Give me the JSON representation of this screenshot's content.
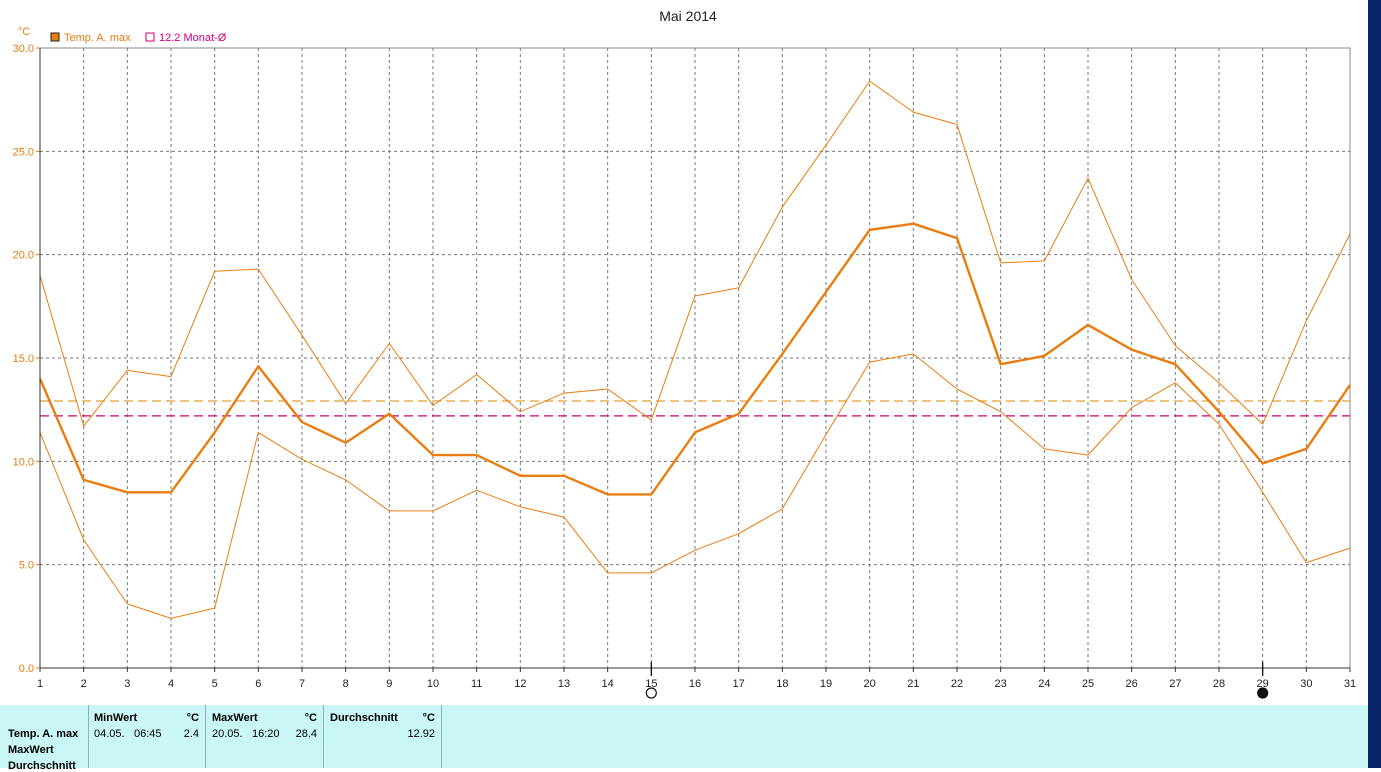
{
  "chart_data": {
    "type": "line",
    "title": "Mai 2014",
    "y_unit": "°C",
    "ylim": [
      0,
      30
    ],
    "yticks": [
      "0.0",
      "5.0",
      "10.0",
      "15.0",
      "20.0",
      "25.0",
      "30.0"
    ],
    "x": [
      1,
      2,
      3,
      4,
      5,
      6,
      7,
      8,
      9,
      10,
      11,
      12,
      13,
      14,
      15,
      16,
      17,
      18,
      19,
      20,
      21,
      22,
      23,
      24,
      25,
      26,
      27,
      28,
      29,
      30,
      31
    ],
    "grid": true,
    "legend_position": "top-left",
    "legend": [
      {
        "label": "Temp. A. max",
        "color": "#e87d10",
        "marker": "filled-square"
      },
      {
        "label": "12.2 Monat-Ø",
        "color": "#cc0077",
        "marker": "open-square"
      }
    ],
    "series": [
      {
        "name": "Temp. A. max",
        "role": "main",
        "color": "#e87d10",
        "values": [
          14.0,
          9.1,
          8.5,
          8.5,
          11.4,
          14.6,
          11.9,
          10.9,
          12.3,
          10.3,
          10.3,
          9.3,
          9.3,
          8.4,
          8.4,
          11.4,
          12.3,
          15.2,
          18.2,
          21.2,
          21.5,
          20.8,
          14.7,
          15.1,
          16.6,
          15.4,
          14.7,
          12.4,
          9.9,
          10.6,
          13.7
        ]
      },
      {
        "role": "upper",
        "color": "#e87d10",
        "values": [
          19.0,
          11.7,
          14.4,
          14.1,
          19.2,
          19.3,
          16.1,
          12.8,
          15.7,
          12.7,
          14.2,
          12.4,
          13.3,
          13.5,
          12.0,
          18.0,
          18.4,
          22.3,
          25.3,
          28.4,
          26.9,
          26.3,
          19.6,
          19.7,
          23.7,
          18.8,
          15.6,
          13.8,
          11.8,
          16.8,
          21.0
        ]
      },
      {
        "role": "lower",
        "color": "#e87d10",
        "values": [
          11.4,
          6.2,
          3.1,
          2.4,
          2.9,
          11.4,
          10.1,
          9.1,
          7.6,
          7.6,
          8.6,
          7.8,
          7.3,
          4.6,
          4.6,
          5.7,
          6.5,
          7.7,
          11.3,
          14.8,
          15.2,
          13.5,
          12.4,
          10.6,
          10.3,
          12.6,
          13.8,
          11.8,
          8.5,
          5.1,
          5.8
        ]
      }
    ],
    "reference_lines": [
      {
        "y": 12.92,
        "color": "#e0a030"
      },
      {
        "y": 12.2,
        "color": "#cc0077"
      }
    ],
    "moon_markers": [
      {
        "x": 15,
        "phase": "full"
      },
      {
        "x": 29,
        "phase": "new"
      }
    ]
  },
  "stats": {
    "row_labels": [
      "Temp. A. max",
      "MaxWert",
      "Durchschnitt"
    ],
    "min": {
      "header": "MinWert",
      "unit": "°C",
      "date": "04.05.",
      "time": "06:45",
      "value": "2.4"
    },
    "max": {
      "header": "MaxWert",
      "unit": "°C",
      "date": "20.05.",
      "time": "16:20",
      "value": "28.4"
    },
    "avg": {
      "header": "Durchschnitt",
      "unit": "°C",
      "value": "12.92"
    }
  }
}
